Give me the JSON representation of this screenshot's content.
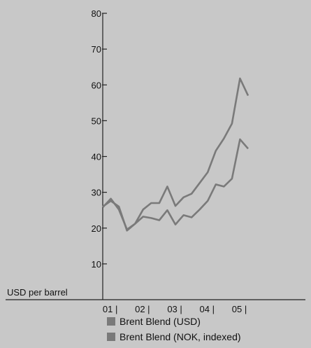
{
  "chart_data": {
    "type": "line",
    "ylabel": "USD per barrel",
    "ylim": [
      0,
      80
    ],
    "yticks": [
      10,
      20,
      30,
      40,
      50,
      60,
      70,
      80
    ],
    "xlim": [
      0,
      18
    ],
    "x_tick_labels": [
      {
        "label": "01 |",
        "x": 1.5
      },
      {
        "label": "02 |",
        "x": 5.5
      },
      {
        "label": "03 |",
        "x": 9.5
      },
      {
        "label": "04 |",
        "x": 13.5
      },
      {
        "label": "05 |",
        "x": 17.5
      }
    ],
    "x": [
      0,
      1,
      2,
      3,
      4,
      5,
      6,
      7,
      8,
      9,
      10,
      11,
      12,
      13,
      14,
      15,
      16,
      17,
      18
    ],
    "series": [
      {
        "name": "Brent Blend (USD)",
        "values": [
          25.8,
          28.2,
          25.2,
          19.6,
          21.2,
          25.2,
          27,
          27,
          31.6,
          26.2,
          28.6,
          29.6,
          32.6,
          35.6,
          41.6,
          45,
          49.2,
          61.8,
          57
        ]
      },
      {
        "name": "Brent Blend (NOK, indexed)",
        "values": [
          26,
          27.6,
          26,
          19.3,
          21.2,
          23.2,
          22.8,
          22.2,
          25,
          21,
          23.6,
          23,
          25.2,
          27.6,
          32.2,
          31.6,
          33.8,
          44.8,
          42.2
        ]
      }
    ],
    "colors": {
      "series": "#7a7a7a",
      "axis": "#222222",
      "background": "#c8c8c8"
    },
    "grid": false,
    "legend_position": "bottom"
  }
}
